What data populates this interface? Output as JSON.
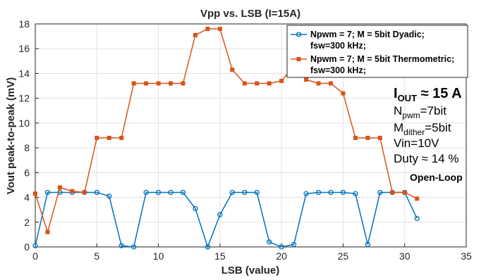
{
  "chart_data": {
    "type": "line",
    "title": "Vpp vs. LSB (I=15A)",
    "xlabel": "LSB (value)",
    "ylabel": "Vout peak-to-peak (mV)",
    "xlim": [
      0,
      35
    ],
    "ylim": [
      0,
      18
    ],
    "xticks": [
      "0",
      "5",
      "10",
      "15",
      "20",
      "25",
      "30",
      "35"
    ],
    "yticks": [
      "0",
      "2",
      "4",
      "6",
      "8",
      "10",
      "12",
      "14",
      "16",
      "18"
    ],
    "grid": true,
    "legend_position": "top-right",
    "series": [
      {
        "name_line1": "Npwm = 7; M = 5bit Dyadic;",
        "name_line2": "fsw=300 kHz;",
        "color": "#0072BD",
        "marker": "circle",
        "x": [
          0,
          1,
          2,
          3,
          4,
          5,
          6,
          7,
          8,
          9,
          10,
          11,
          12,
          13,
          14,
          15,
          16,
          17,
          18,
          19,
          20,
          21,
          22,
          23,
          24,
          25,
          26,
          27,
          28,
          29,
          30,
          31
        ],
        "values": [
          0.1,
          4.4,
          4.4,
          4.4,
          4.4,
          4.4,
          4.1,
          0.1,
          0.0,
          4.4,
          4.4,
          4.4,
          4.4,
          3.1,
          0.0,
          2.6,
          4.4,
          4.4,
          4.4,
          0.4,
          0.0,
          0.2,
          4.3,
          4.4,
          4.4,
          4.4,
          4.3,
          0.2,
          4.4,
          4.4,
          4.4,
          2.3
        ]
      },
      {
        "name_line1": "Npwm = 7; M = 5bit Thermometric;",
        "name_line2": "fsw=300 kHz;",
        "color": "#D95319",
        "marker": "square",
        "x": [
          0,
          1,
          2,
          3,
          4,
          5,
          6,
          7,
          8,
          9,
          10,
          11,
          12,
          13,
          14,
          15,
          16,
          17,
          18,
          19,
          20,
          21,
          22,
          23,
          24,
          25,
          26,
          27,
          28,
          29,
          30,
          31
        ],
        "values": [
          4.3,
          1.2,
          4.8,
          4.5,
          4.4,
          8.8,
          8.8,
          8.8,
          13.2,
          13.2,
          13.2,
          13.2,
          13.2,
          17.1,
          17.6,
          17.6,
          14.3,
          13.2,
          13.2,
          13.2,
          13.4,
          14.6,
          13.5,
          13.2,
          13.2,
          12.4,
          8.8,
          8.8,
          8.8,
          4.4,
          4.4,
          3.9
        ]
      }
    ]
  },
  "annotations": {
    "iout_main": "I",
    "iout_sub": "OUT",
    "iout_rest": " ≈ 15 A",
    "npwm_main": "N",
    "npwm_sub": "pwm",
    "npwm_rest": "=7bit",
    "mdither_main": "M",
    "mdither_sub": "dither",
    "mdither_rest": "=5bit",
    "vin": "Vin=10V",
    "duty": "Duty ≈ 14 %",
    "mode": "Open-Loop"
  }
}
